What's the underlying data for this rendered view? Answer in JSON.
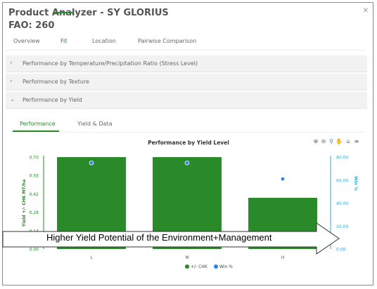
{
  "window": {
    "title": "Product Analyzer - SY GLORIUS",
    "subtitle": "FAO: 260",
    "close_icon": "close-icon"
  },
  "tabs": [
    {
      "label": "Overview",
      "active": false
    },
    {
      "label": "Fit",
      "active": true
    },
    {
      "label": "Location",
      "active": false
    },
    {
      "label": "Pairwise Comparison",
      "active": false
    }
  ],
  "accordion": [
    {
      "label": "Performance by Temperature/Precipitation Ratio (Stress Level)",
      "icon": "chevron-right-icon"
    },
    {
      "label": "Performance by Texture",
      "icon": "chevron-right-icon"
    },
    {
      "label": "Performance by Yield",
      "icon": "chevron-down-icon"
    }
  ],
  "subtabs": [
    {
      "label": "Performance",
      "active": true
    },
    {
      "label": "Yield & Data",
      "active": false
    }
  ],
  "toolbar_icons": [
    "zoom-in-icon",
    "zoom-out-icon",
    "search-icon",
    "pan-hand-icon",
    "home-icon",
    "menu-icon"
  ],
  "colors": {
    "accent": "#2a8a2a",
    "bar": "#2a8a2a",
    "win_point": "#2f80ed",
    "right_axis": "#3aa7d9"
  },
  "chart_data": {
    "type": "bar",
    "title": "Performance by Yield Level",
    "categories": [
      "L",
      "M",
      "H"
    ],
    "series": [
      {
        "name": "+/- CHK",
        "type": "bar",
        "axis": "left",
        "values": [
          0.7,
          0.7,
          0.39
        ]
      },
      {
        "name": "Win %",
        "type": "scatter",
        "axis": "right",
        "values": [
          75,
          75,
          61
        ]
      }
    ],
    "ylabel": "Yield +/- CHK MT/ha",
    "ylabel_right": "Win %",
    "ylim": [
      0,
      0.7
    ],
    "ylim_right": [
      0,
      80
    ],
    "yticks": [
      "0.70",
      "0.56",
      "0.42",
      "0.28",
      "0.14",
      "0.00"
    ],
    "yticks_right": [
      "80.00",
      "60.00",
      "40.00",
      "20.00",
      "0.00"
    ],
    "legend": "bottom",
    "annotation": "Higher Yield Potential of the Environment+Management"
  }
}
